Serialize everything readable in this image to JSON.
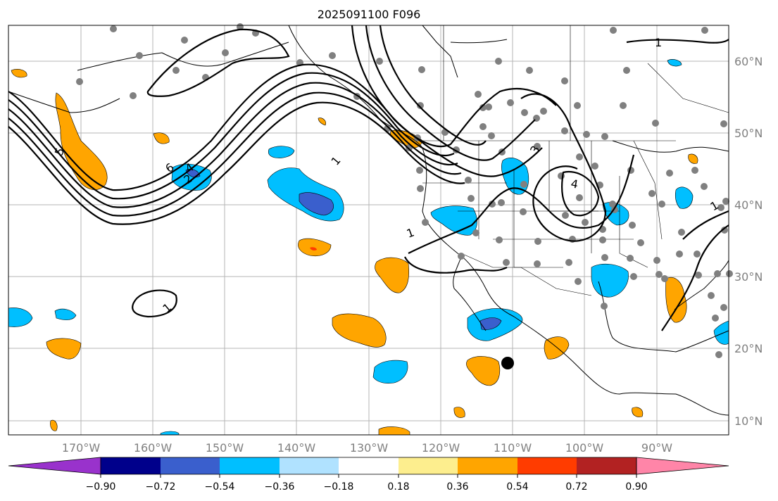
{
  "title": "2025091100 F096",
  "lon_ticks": [
    "170°W",
    "160°W",
    "150°W",
    "140°W",
    "130°W",
    "120°W",
    "110°W",
    "100°W",
    "90°W"
  ],
  "lat_ticks": [
    "60°N",
    "50°N",
    "40°N",
    "30°N",
    "20°N",
    "10°N"
  ],
  "colorbar": {
    "colors": [
      "#9932cc",
      "#00008b",
      "#3a5fcd",
      "#00bfff",
      "#b0e2ff",
      "#ffffff",
      "#fdee8e",
      "#ffa500",
      "#ff3c00",
      "#b22222",
      "#ff85a8"
    ],
    "labels": [
      "−0.90",
      "−0.72",
      "−0.54",
      "−0.36",
      "−0.18",
      "0.18",
      "0.36",
      "0.54",
      "0.72",
      "0.90"
    ]
  },
  "contour_labels": [
    "1",
    "1",
    "6",
    "4",
    "2",
    "3",
    "4",
    "1",
    "1",
    "5",
    "1"
  ],
  "colors": {
    "orange": "#ffa500",
    "cyan": "#00bfff",
    "royal": "#3a5fcd",
    "red": "#ff3c00",
    "dot": "#808080",
    "grid": "#b4b4b4"
  }
}
